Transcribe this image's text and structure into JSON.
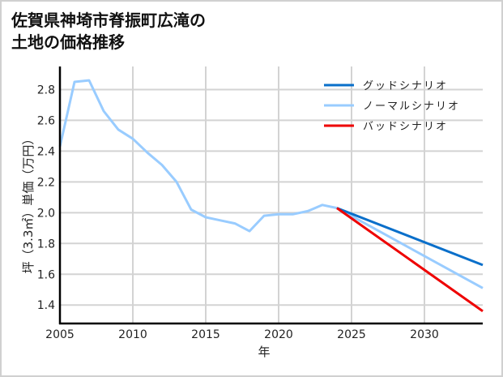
{
  "title": "佐賀県神埼市脊振町広滝の\n土地の価格推移",
  "chart_data": {
    "type": "line",
    "title": "佐賀県神埼市脊振町広滝の土地の価格推移",
    "xlabel": "年",
    "ylabel": "坪（3.3㎡）単価（万円）",
    "xlim": [
      2005,
      2034
    ],
    "ylim": [
      1.28,
      2.95
    ],
    "x_ticks": [
      2005,
      2010,
      2015,
      2020,
      2025,
      2030
    ],
    "y_ticks": [
      1.4,
      1.6,
      1.8,
      2.0,
      2.2,
      2.4,
      2.6,
      2.8
    ],
    "y_tick_labels": [
      "1.4",
      "1.6",
      "1.8",
      "2.0",
      "2.2",
      "2.4",
      "2.6",
      "2.8"
    ],
    "grid": true,
    "legend_position": "upper right",
    "series": [
      {
        "name": "グッドシナリオ",
        "color": "#0a6fca",
        "x": [
          2024,
          2034
        ],
        "values": [
          2.03,
          1.66
        ]
      },
      {
        "name": "ノーマルシナリオ",
        "color": "#99ccff",
        "x": [
          2005,
          2006,
          2007,
          2008,
          2009,
          2010,
          2011,
          2012,
          2013,
          2014,
          2015,
          2016,
          2017,
          2018,
          2019,
          2020,
          2021,
          2022,
          2023,
          2024,
          2034
        ],
        "values": [
          2.43,
          2.85,
          2.86,
          2.66,
          2.54,
          2.48,
          2.39,
          2.31,
          2.2,
          2.02,
          1.97,
          1.95,
          1.93,
          1.88,
          1.98,
          1.99,
          1.99,
          2.01,
          2.05,
          2.03,
          1.51
        ]
      },
      {
        "name": "バッドシナリオ",
        "color": "#ee0000",
        "x": [
          2024,
          2034
        ],
        "values": [
          2.03,
          1.36
        ]
      }
    ]
  }
}
